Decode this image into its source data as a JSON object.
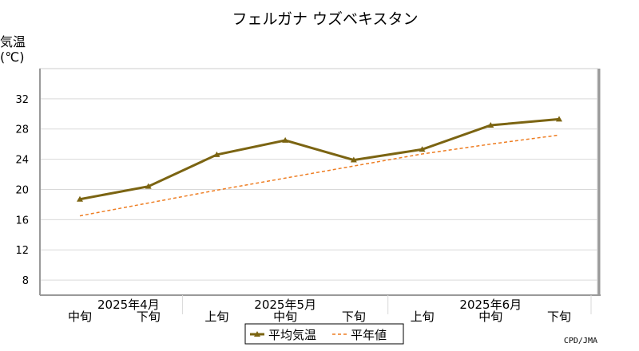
{
  "chart_data": {
    "type": "line",
    "title": "フェルガナ ウズベキスタン",
    "ylabel_line1": "気温",
    "ylabel_line2": "(℃)",
    "ylim": [
      6,
      36
    ],
    "yticks": [
      8,
      12,
      16,
      20,
      24,
      28,
      32
    ],
    "grid": true,
    "categories": [
      "中旬",
      "下旬",
      "上旬",
      "中旬",
      "下旬",
      "上旬",
      "中旬",
      "下旬"
    ],
    "months": [
      {
        "label": "2025年4月",
        "start": 0,
        "end": 1
      },
      {
        "label": "2025年5月",
        "start": 2,
        "end": 4
      },
      {
        "label": "2025年6月",
        "start": 5,
        "end": 7
      }
    ],
    "series": [
      {
        "name": "平均気温",
        "color": "#7b6412",
        "style": "solid",
        "marker": "triangle",
        "values": [
          18.7,
          20.4,
          24.6,
          26.5,
          23.9,
          25.3,
          28.5,
          29.3
        ]
      },
      {
        "name": "平年値",
        "color": "#ee7d22",
        "style": "dashed",
        "marker": "none",
        "values": [
          16.5,
          18.2,
          19.9,
          21.5,
          23.1,
          24.7,
          26.0,
          27.2
        ]
      }
    ],
    "legend_position": "bottom",
    "credit": "CPD/JMA"
  }
}
